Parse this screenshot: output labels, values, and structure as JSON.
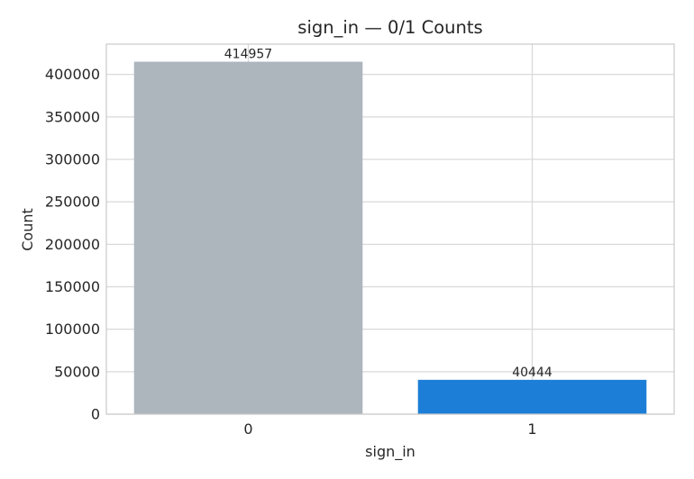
{
  "chart_data": {
    "type": "bar",
    "title": "sign_in — 0/1 Counts",
    "xlabel": "sign_in",
    "ylabel": "Count",
    "categories": [
      "0",
      "1"
    ],
    "values": [
      414957,
      40444
    ],
    "data_labels": [
      "414957",
      "40444"
    ],
    "colors": [
      "#adb5bd",
      "#1c7ed6"
    ],
    "ylim": [
      0,
      435700
    ],
    "yticks": [
      0,
      50000,
      100000,
      150000,
      200000,
      250000,
      300000,
      350000,
      400000
    ],
    "ytick_labels": [
      "0",
      "50000",
      "100000",
      "150000",
      "200000",
      "250000",
      "300000",
      "350000",
      "400000"
    ],
    "grid": true,
    "style": {
      "grid_color": "#d9d9d9",
      "frame_color": "#cccccc",
      "text_color": "#262626"
    }
  }
}
